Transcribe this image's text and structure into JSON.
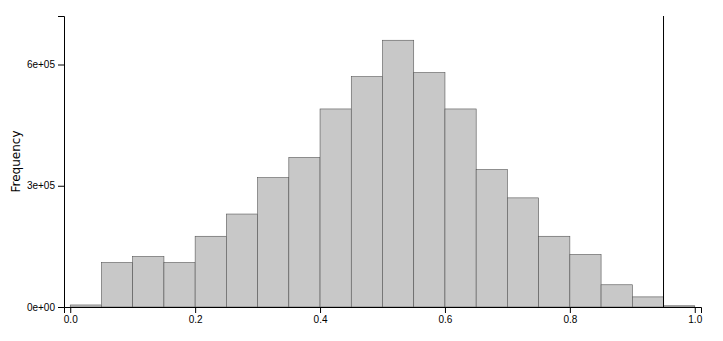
{
  "chart_data": {
    "type": "histogram",
    "ylabel": "Frequency",
    "bins": [
      0.0,
      0.05,
      0.1,
      0.15,
      0.2,
      0.25,
      0.3,
      0.35,
      0.4,
      0.45,
      0.5,
      0.55,
      0.6,
      0.65,
      0.7,
      0.75,
      0.8,
      0.85,
      0.9,
      0.95,
      1.0
    ],
    "values": [
      5000,
      110000,
      125000,
      110000,
      175000,
      230000,
      320000,
      370000,
      490000,
      570000,
      660000,
      580000,
      490000,
      340000,
      270000,
      175000,
      130000,
      55000,
      25000,
      3000
    ],
    "color": "#c8c8c8",
    "vline": {
      "x": 0.95,
      "color": "black"
    },
    "xlim": [
      -0.01,
      1.01
    ],
    "xticks": [
      {
        "value": 0.0,
        "label": "0.0"
      },
      0.2,
      0.4,
      0.6,
      0.8,
      {
        "value": 1.0,
        "label": "1.0"
      }
    ],
    "ylim": [
      0,
      720000
    ],
    "yticks": [
      {
        "value": 0,
        "label": "0e+00"
      },
      {
        "value": 300000,
        "label": "3e+05"
      },
      {
        "value": 600000,
        "label": "6e+05"
      }
    ],
    "grid": false
  }
}
